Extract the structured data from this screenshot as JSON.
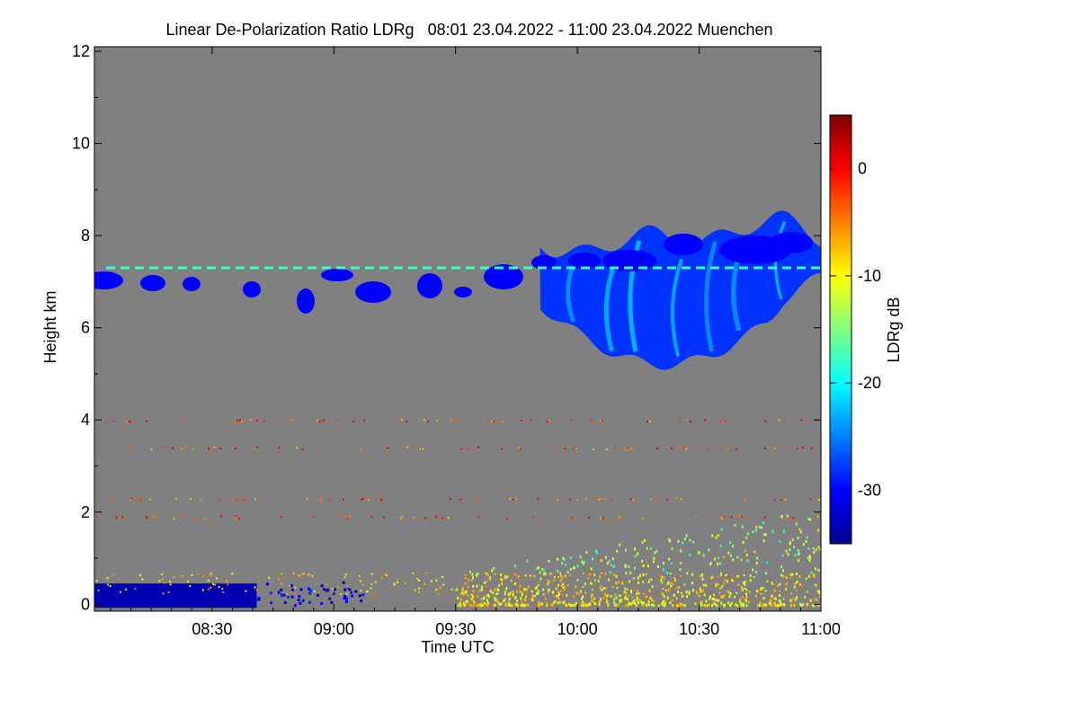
{
  "chart_data": {
    "type": "heatmap",
    "title": "Linear De-Polarization Ratio LDRg   08:01 23.04.2022 - 11:00 23.04.2022 Muenchen",
    "xlabel": "Time UTC",
    "ylabel": "Height km",
    "xlim_minutes": [
      481,
      660
    ],
    "ylim_km": [
      -0.15,
      12.1
    ],
    "x_ticks": [
      {
        "label": "08:30",
        "minutes": 510
      },
      {
        "label": "09:00",
        "minutes": 540
      },
      {
        "label": "09:30",
        "minutes": 570
      },
      {
        "label": "10:00",
        "minutes": 600
      },
      {
        "label": "10:30",
        "minutes": 630
      },
      {
        "label": "11:00",
        "minutes": 660
      }
    ],
    "y_ticks": [
      {
        "label": "0",
        "value": 0
      },
      {
        "label": "2",
        "value": 2
      },
      {
        "label": "4",
        "value": 4
      },
      {
        "label": "6",
        "value": 6
      },
      {
        "label": "8",
        "value": 8
      },
      {
        "label": "10",
        "value": 10
      },
      {
        "label": "12",
        "value": 12
      }
    ],
    "colorbar": {
      "label": "LDRg dB",
      "range": [
        -35,
        5
      ],
      "ticks": [
        {
          "label": "0",
          "value": 0
        },
        {
          "label": "-10",
          "value": -10
        },
        {
          "label": "-20",
          "value": -20
        },
        {
          "label": "-30",
          "value": -30
        }
      ]
    },
    "background_color": "#808080",
    "features": [
      {
        "name": "cirrus layer",
        "start_min": 481,
        "end_min": 660,
        "base_km": 6.4,
        "top_km": 7.9,
        "ldr_db": -30
      },
      {
        "name": "main ice cloud",
        "start_min": 589,
        "end_min": 660,
        "base_km": 5.2,
        "top_km": 8.4,
        "ldr_db": -28
      },
      {
        "name": "low-level aerosol (low LDR)",
        "start_min": 481,
        "end_min": 521,
        "base_km": 0.0,
        "top_km": 0.45,
        "ldr_db": -33
      },
      {
        "name": "boundary layer aerosol (high LDR)",
        "start_min": 570,
        "end_min": 660,
        "base_km": 0.0,
        "top_km": 1.4,
        "ldr_db": -10
      }
    ]
  }
}
